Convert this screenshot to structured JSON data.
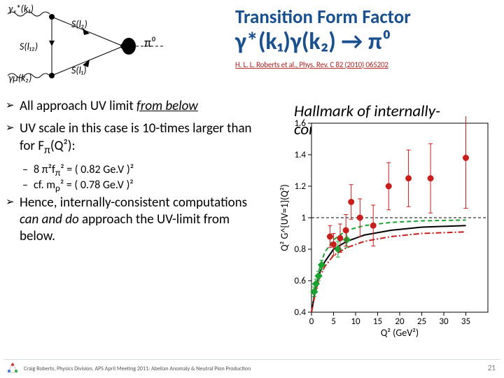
{
  "title": {
    "line1": "Transition Form Factor",
    "line2_html": "γ*(k₁)γ(k₂) → π⁰",
    "citation": "H. L. L. Roberts et al., Phys. Rev. C 82 (2010) 065202"
  },
  "feynman": {
    "labels": {
      "gamma_v": "γᵥ*(k₁)",
      "gamma_mu": "γμ(k₂)",
      "Sl12": "S(l₁₂)",
      "Sl2": "S(l₂)",
      "Sl1": "S(l₁)",
      "pi0": "π⁰"
    },
    "colors": {
      "photon": "#000000",
      "quark": "#000000",
      "pion_fill": "#000000"
    }
  },
  "bullets": [
    {
      "html": "All approach UV limit <span class='italic underline'>from below</span>"
    },
    {
      "html": "UV scale in this case is 10-times larger than for F<sub>π</sub>(Q²):",
      "subs": [
        "8 π²f<sub>π</sub>² = ( 0.82 Ge.V )²",
        "cf. m<sub>ρ</sub>² = ( 0.78 Ge.V )²"
      ]
    },
    {
      "html": "Hence, internally-consistent computations <span class='italic'>can and do</span> approach the UV-limit from below."
    }
  ],
  "hallmark_text": "Hallmark of internally-consistent computations",
  "chart": {
    "type": "scatter+lines",
    "xlabel": "Q² (GeV²)",
    "ylabel": "Q² G^{UV=1}(Q²)",
    "background_color": "#ffffff",
    "grid_color": "#bfbfbf",
    "xlim": [
      0,
      40
    ],
    "ylim": [
      0.4,
      1.6
    ],
    "xtick_positions": [
      0,
      5,
      10,
      15,
      20,
      25,
      30,
      35
    ],
    "xtick_labels": [
      "0",
      "5",
      "10",
      "15",
      "20",
      "25",
      "30",
      "35"
    ],
    "ytick_positions": [
      0.4,
      0.6,
      0.8,
      1.0,
      1.2,
      1.4,
      1.6
    ],
    "ytick_labels": [
      "0.4",
      "0.6",
      "0.8",
      "1",
      "1.2",
      "1.4",
      "1.6"
    ],
    "hline": {
      "y": 1.0,
      "color": "#000000",
      "width": 1,
      "dash": "4 3"
    },
    "curves": [
      {
        "name": "green-dashed",
        "color": "#1aa330",
        "width": 2,
        "dash": "6 4",
        "pts": [
          [
            0,
            0.4
          ],
          [
            1,
            0.58
          ],
          [
            2,
            0.7
          ],
          [
            3,
            0.78
          ],
          [
            5,
            0.86
          ],
          [
            8,
            0.92
          ],
          [
            12,
            0.95
          ],
          [
            18,
            0.97
          ],
          [
            25,
            0.98
          ],
          [
            35,
            0.985
          ]
        ]
      },
      {
        "name": "black-solid",
        "color": "#000000",
        "width": 2,
        "pts": [
          [
            0,
            0.4
          ],
          [
            1,
            0.56
          ],
          [
            2,
            0.66
          ],
          [
            3,
            0.72
          ],
          [
            5,
            0.8
          ],
          [
            8,
            0.85
          ],
          [
            12,
            0.89
          ],
          [
            18,
            0.92
          ],
          [
            25,
            0.94
          ],
          [
            35,
            0.95
          ]
        ]
      },
      {
        "name": "red-dashdot",
        "color": "#c81e1e",
        "width": 2,
        "dash": "8 3 2 3",
        "pts": [
          [
            0,
            0.4
          ],
          [
            1,
            0.54
          ],
          [
            2,
            0.63
          ],
          [
            3,
            0.69
          ],
          [
            5,
            0.76
          ],
          [
            8,
            0.81
          ],
          [
            12,
            0.85
          ],
          [
            18,
            0.88
          ],
          [
            25,
            0.9
          ],
          [
            35,
            0.91
          ]
        ]
      }
    ],
    "series_points": [
      {
        "name": "green-diamonds",
        "marker": "diamond",
        "fill": "#1aa330",
        "stroke": "#1aa330",
        "size": 5,
        "pts": [
          [
            0.6,
            0.53,
            0.03
          ],
          [
            1.0,
            0.58,
            0.03
          ],
          [
            1.6,
            0.63,
            0.03
          ],
          [
            2.3,
            0.7,
            0.03
          ],
          [
            6.0,
            0.8,
            0.05
          ],
          [
            8.0,
            0.86,
            0.05
          ]
        ]
      },
      {
        "name": "red-circles",
        "marker": "circle",
        "fill": "#c81e1e",
        "stroke": "#c81e1e",
        "size": 4,
        "pts": [
          [
            4.2,
            0.88,
            0.07
          ],
          [
            5.0,
            0.83,
            0.07
          ],
          [
            6.5,
            0.87,
            0.09
          ],
          [
            7.8,
            0.92,
            0.1
          ],
          [
            9.0,
            1.1,
            0.11
          ],
          [
            11.0,
            1.0,
            0.12
          ],
          [
            14.0,
            0.95,
            0.13
          ],
          [
            17.5,
            1.2,
            0.15
          ],
          [
            22.0,
            1.25,
            0.18
          ],
          [
            27.0,
            1.25,
            0.22
          ],
          [
            35.0,
            1.38,
            0.32
          ]
        ]
      }
    ]
  },
  "footer": {
    "text": "Craig Roberts, Physics Division, APS April Meeting 2011: Abelian Anomaly & Neutral Pion Production",
    "page": "21",
    "logo_colors": [
      "#d83b3b",
      "#3b7fd8",
      "#2fae4f",
      "#f2b705"
    ]
  }
}
